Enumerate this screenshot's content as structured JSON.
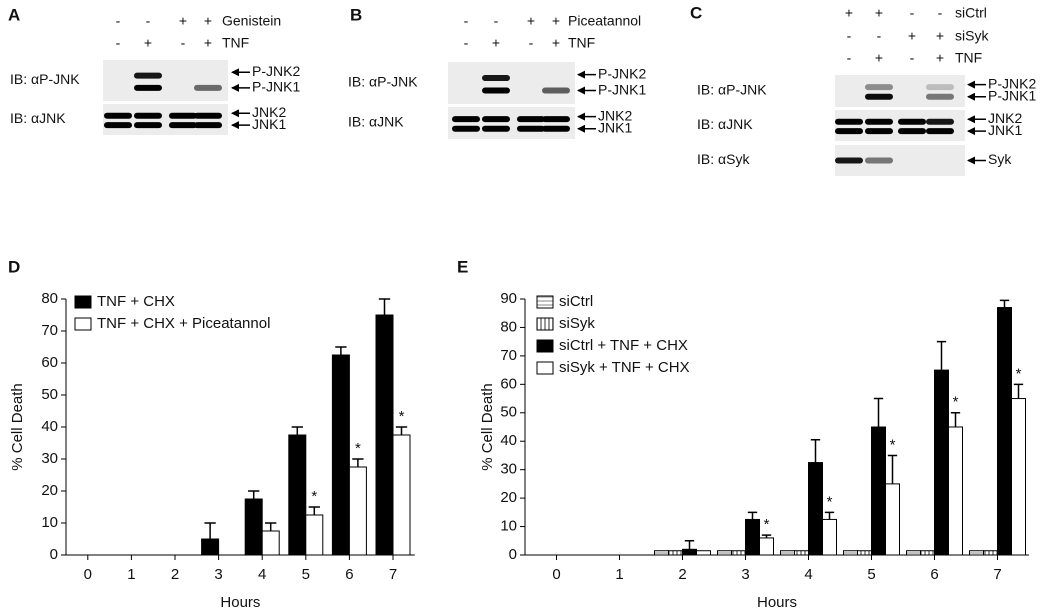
{
  "blots": [
    {
      "label": "A",
      "treatments": [
        {
          "name": "Genistein",
          "signs": [
            "-",
            "-",
            "+",
            "+"
          ]
        },
        {
          "name": "TNF",
          "signs": [
            "-",
            "+",
            "-",
            "+"
          ]
        }
      ],
      "blots": [
        {
          "label": "IB: αP-JNK",
          "bands": [
            "P-JNK2",
            "P-JNK1"
          ]
        },
        {
          "label": "IB: αJNK",
          "bands": [
            "JNK2",
            "JNK1"
          ]
        }
      ]
    },
    {
      "label": "B",
      "treatments": [
        {
          "name": "Piceatannol",
          "signs": [
            "-",
            "-",
            "+",
            "+"
          ]
        },
        {
          "name": "TNF",
          "signs": [
            "-",
            "+",
            "-",
            "+"
          ]
        }
      ],
      "blots": [
        {
          "label": "IB: αP-JNK",
          "bands": [
            "P-JNK2",
            "P-JNK1"
          ]
        },
        {
          "label": "IB: αJNK",
          "bands": [
            "JNK2",
            "JNK1"
          ]
        }
      ]
    },
    {
      "label": "C",
      "treatments": [
        {
          "name": "siCtrl",
          "signs": [
            "+",
            "+",
            "-",
            "-"
          ]
        },
        {
          "name": "siSyk",
          "signs": [
            "-",
            "-",
            "+",
            "+"
          ]
        },
        {
          "name": "TNF",
          "signs": [
            "-",
            "+",
            "-",
            "+"
          ]
        }
      ],
      "blots": [
        {
          "label": "IB: αP-JNK",
          "bands": [
            "P-JNK2",
            "P-JNK1"
          ]
        },
        {
          "label": "IB: αJNK",
          "bands": [
            "JNK2",
            "JNK1"
          ]
        },
        {
          "label": "IB: αSyk",
          "bands": [
            "Syk"
          ]
        }
      ]
    }
  ],
  "chart_data": [
    {
      "type": "bar",
      "panel": "D",
      "xlabel": "Hours",
      "ylabel": "% Cell Death",
      "categories": [
        "0",
        "1",
        "2",
        "3",
        "4",
        "5",
        "6",
        "7"
      ],
      "ylim": [
        0,
        80
      ],
      "yticks": [
        0,
        10,
        20,
        30,
        40,
        50,
        60,
        70,
        80
      ],
      "series": [
        {
          "name": "TNF + CHX",
          "color": "#000000",
          "values": [
            0,
            0,
            0,
            5,
            17.5,
            37.5,
            62.5,
            75
          ],
          "errors": [
            0,
            0,
            0,
            5,
            2.5,
            2.5,
            2.5,
            5
          ]
        },
        {
          "name": "TNF + CHX + Piceatannol",
          "color": "#ffffff",
          "values": [
            0,
            0,
            0,
            0,
            7.5,
            12.5,
            27.5,
            37.5
          ],
          "errors": [
            0,
            0,
            0,
            0,
            2.5,
            2.5,
            2.5,
            2.5
          ],
          "markers": [
            null,
            null,
            null,
            null,
            null,
            "*",
            "*",
            "*"
          ]
        }
      ]
    },
    {
      "type": "bar",
      "panel": "E",
      "xlabel": "Hours",
      "ylabel": "% Cell Death",
      "categories": [
        "0",
        "1",
        "2",
        "3",
        "4",
        "5",
        "6",
        "7"
      ],
      "ylim": [
        0,
        90
      ],
      "yticks": [
        0,
        10,
        20,
        30,
        40,
        50,
        60,
        70,
        80,
        90
      ],
      "series": [
        {
          "name": "siCtrl",
          "color": "#9a9a9a",
          "hatch": "horizontal",
          "values": [
            0,
            0,
            1.5,
            1.5,
            1.5,
            1.5,
            1.5,
            1.5
          ],
          "errors": [
            0,
            0,
            0,
            0,
            0,
            0,
            0,
            0
          ]
        },
        {
          "name": "siSyk",
          "color": "#555555",
          "hatch": "vertical",
          "values": [
            0,
            0,
            1.5,
            1.5,
            1.5,
            1.5,
            1.5,
            1.5
          ],
          "errors": [
            0,
            0,
            0,
            0,
            0,
            0,
            0,
            0
          ]
        },
        {
          "name": "siCtrl + TNF + CHX",
          "color": "#000000",
          "values": [
            0,
            0,
            2,
            12.5,
            32.5,
            45,
            65,
            87
          ],
          "errors": [
            0,
            0,
            3,
            2.5,
            8,
            10,
            10,
            2.5
          ]
        },
        {
          "name": "siSyk + TNF + CHX",
          "color": "#ffffff",
          "values": [
            0,
            0,
            1.5,
            6,
            12.5,
            25,
            45,
            55
          ],
          "errors": [
            0,
            0,
            0,
            1,
            2.5,
            10,
            5,
            5
          ],
          "markers": [
            null,
            null,
            null,
            "*",
            "*",
            "*",
            "*",
            "*"
          ]
        }
      ]
    }
  ]
}
